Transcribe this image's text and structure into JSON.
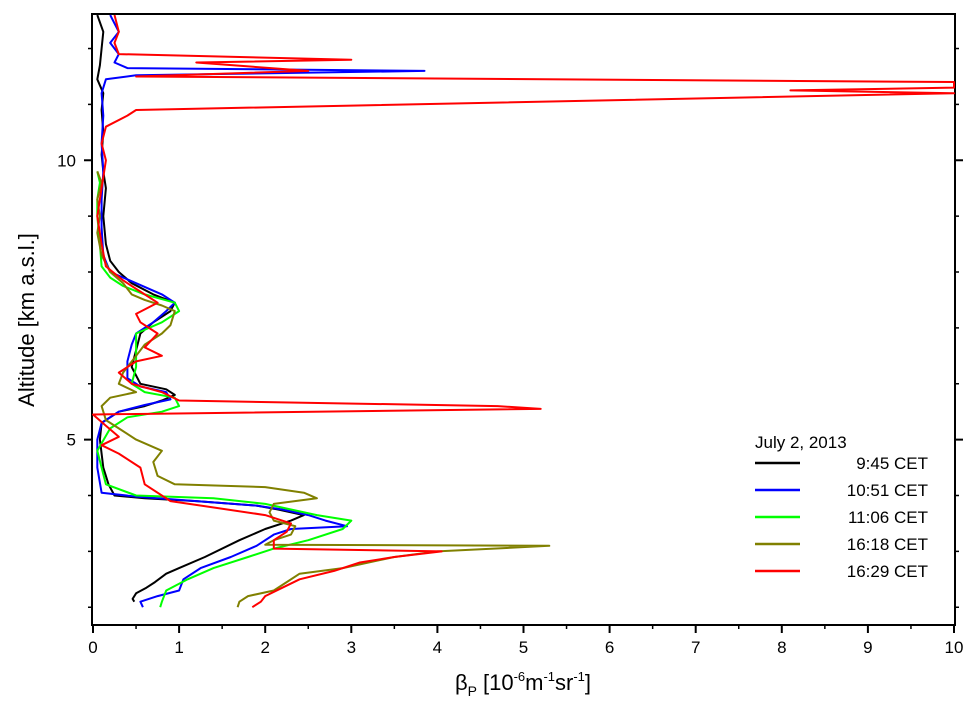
{
  "chart_data": {
    "type": "line",
    "orientation": "profile",
    "xlabel_symbol": "β",
    "xlabel_sub": "P",
    "xlabel_unit_base": "10",
    "xlabel_unit_exp1": "-6",
    "xlabel_unit_m": "m",
    "xlabel_unit_exp2": "-1",
    "xlabel_unit_sr": "sr",
    "xlabel_unit_exp3": "-1",
    "ylabel": "Altitude [km a.s.l.]",
    "xlim": [
      0,
      10
    ],
    "ylim": [
      1.7,
      12.6
    ],
    "x_ticks": [
      "0",
      "1",
      "2",
      "3",
      "4",
      "5",
      "6",
      "7",
      "8",
      "9",
      "10"
    ],
    "y_ticks": [
      "5",
      "10"
    ],
    "legend_title": "July 2, 2013",
    "legend_position": "lower-right",
    "series": [
      {
        "name": "9:45 CET",
        "color": "#000000",
        "points": [
          [
            0.48,
            2.1
          ],
          [
            0.46,
            2.15
          ],
          [
            0.5,
            2.25
          ],
          [
            0.62,
            2.35
          ],
          [
            0.72,
            2.45
          ],
          [
            0.85,
            2.6
          ],
          [
            1.0,
            2.7
          ],
          [
            1.3,
            2.9
          ],
          [
            1.7,
            3.2
          ],
          [
            2.0,
            3.4
          ],
          [
            2.3,
            3.55
          ],
          [
            2.45,
            3.65
          ],
          [
            2.15,
            3.75
          ],
          [
            1.9,
            3.82
          ],
          [
            1.2,
            3.9
          ],
          [
            0.6,
            3.95
          ],
          [
            0.25,
            4.0
          ],
          [
            0.18,
            4.2
          ],
          [
            0.12,
            4.5
          ],
          [
            0.08,
            5.0
          ],
          [
            0.1,
            5.3
          ],
          [
            0.3,
            5.5
          ],
          [
            0.6,
            5.6
          ],
          [
            0.8,
            5.7
          ],
          [
            0.95,
            5.8
          ],
          [
            0.85,
            5.9
          ],
          [
            0.55,
            6.0
          ],
          [
            0.45,
            6.3
          ],
          [
            0.5,
            6.6
          ],
          [
            0.55,
            6.9
          ],
          [
            0.7,
            7.1
          ],
          [
            0.9,
            7.3
          ],
          [
            0.95,
            7.45
          ],
          [
            0.7,
            7.6
          ],
          [
            0.45,
            7.8
          ],
          [
            0.3,
            8.0
          ],
          [
            0.2,
            8.2
          ],
          [
            0.15,
            8.5
          ],
          [
            0.12,
            9.0
          ],
          [
            0.15,
            9.5
          ],
          [
            0.12,
            9.8
          ],
          [
            0.1,
            10.1
          ],
          [
            0.12,
            10.5
          ],
          [
            0.1,
            10.9
          ],
          [
            0.12,
            11.2
          ],
          [
            0.05,
            11.45
          ],
          [
            0.08,
            11.7
          ],
          [
            0.1,
            12.0
          ],
          [
            0.12,
            12.3
          ],
          [
            0.05,
            12.6
          ]
        ]
      },
      {
        "name": "10:51 CET",
        "color": "#0000ff",
        "points": [
          [
            0.58,
            2.0
          ],
          [
            0.55,
            2.1
          ],
          [
            0.75,
            2.2
          ],
          [
            1.0,
            2.3
          ],
          [
            1.05,
            2.5
          ],
          [
            1.25,
            2.7
          ],
          [
            1.6,
            2.9
          ],
          [
            1.9,
            3.1
          ],
          [
            2.1,
            3.3
          ],
          [
            2.3,
            3.4
          ],
          [
            2.95,
            3.45
          ],
          [
            2.7,
            3.55
          ],
          [
            2.5,
            3.65
          ],
          [
            2.2,
            3.75
          ],
          [
            1.9,
            3.82
          ],
          [
            1.2,
            3.9
          ],
          [
            0.5,
            3.98
          ],
          [
            0.1,
            4.05
          ],
          [
            0.05,
            4.5
          ],
          [
            0.05,
            5.0
          ],
          [
            0.1,
            5.3
          ],
          [
            0.3,
            5.5
          ],
          [
            0.6,
            5.62
          ],
          [
            0.9,
            5.72
          ],
          [
            0.85,
            5.85
          ],
          [
            0.55,
            5.95
          ],
          [
            0.4,
            6.1
          ],
          [
            0.4,
            6.4
          ],
          [
            0.45,
            6.7
          ],
          [
            0.5,
            6.9
          ],
          [
            0.7,
            7.1
          ],
          [
            0.85,
            7.3
          ],
          [
            0.95,
            7.45
          ],
          [
            0.8,
            7.6
          ],
          [
            0.5,
            7.8
          ],
          [
            0.2,
            8.0
          ],
          [
            0.12,
            8.3
          ],
          [
            0.1,
            8.8
          ],
          [
            0.1,
            9.3
          ],
          [
            0.12,
            9.8
          ],
          [
            0.1,
            10.3
          ],
          [
            0.12,
            10.8
          ],
          [
            0.1,
            11.2
          ],
          [
            0.15,
            11.45
          ],
          [
            0.5,
            11.52
          ],
          [
            3.85,
            11.6
          ],
          [
            0.4,
            11.65
          ],
          [
            0.25,
            11.75
          ],
          [
            0.3,
            11.9
          ],
          [
            0.2,
            12.1
          ],
          [
            0.3,
            12.3
          ],
          [
            0.2,
            12.6
          ]
        ]
      },
      {
        "name": "11:06 CET",
        "color": "#00ff00",
        "points": [
          [
            0.78,
            2.0
          ],
          [
            0.8,
            2.1
          ],
          [
            0.85,
            2.3
          ],
          [
            1.1,
            2.5
          ],
          [
            1.4,
            2.7
          ],
          [
            1.8,
            2.9
          ],
          [
            2.1,
            3.05
          ],
          [
            2.5,
            3.2
          ],
          [
            2.9,
            3.4
          ],
          [
            3.0,
            3.55
          ],
          [
            2.6,
            3.65
          ],
          [
            2.3,
            3.75
          ],
          [
            2.0,
            3.85
          ],
          [
            1.4,
            3.95
          ],
          [
            0.5,
            4.0
          ],
          [
            0.15,
            4.2
          ],
          [
            0.1,
            4.5
          ],
          [
            0.05,
            4.8
          ],
          [
            0.2,
            5.2
          ],
          [
            0.4,
            5.4
          ],
          [
            0.8,
            5.5
          ],
          [
            1.0,
            5.6
          ],
          [
            0.95,
            5.75
          ],
          [
            0.6,
            5.85
          ],
          [
            0.45,
            6.0
          ],
          [
            0.5,
            6.3
          ],
          [
            0.5,
            6.6
          ],
          [
            0.5,
            6.9
          ],
          [
            0.8,
            7.1
          ],
          [
            1.0,
            7.3
          ],
          [
            0.95,
            7.45
          ],
          [
            0.6,
            7.6
          ],
          [
            0.35,
            7.75
          ],
          [
            0.2,
            7.9
          ],
          [
            0.1,
            8.1
          ],
          [
            0.08,
            8.5
          ],
          [
            0.05,
            9.0
          ],
          [
            0.05,
            9.3
          ],
          [
            0.08,
            9.6
          ],
          [
            0.05,
            9.8
          ]
        ]
      },
      {
        "name": "16:18 CET",
        "color": "#808000",
        "points": [
          [
            1.68,
            2.0
          ],
          [
            1.7,
            2.1
          ],
          [
            1.8,
            2.2
          ],
          [
            2.1,
            2.3
          ],
          [
            2.25,
            2.45
          ],
          [
            2.4,
            2.6
          ],
          [
            2.9,
            2.7
          ],
          [
            3.2,
            2.8
          ],
          [
            3.5,
            2.9
          ],
          [
            4.0,
            3.0
          ],
          [
            5.3,
            3.1
          ],
          [
            2.0,
            3.12
          ],
          [
            2.1,
            3.2
          ],
          [
            2.3,
            3.3
          ],
          [
            2.35,
            3.45
          ],
          [
            2.1,
            3.55
          ],
          [
            2.05,
            3.7
          ],
          [
            2.1,
            3.85
          ],
          [
            2.6,
            3.95
          ],
          [
            2.45,
            4.05
          ],
          [
            2.0,
            4.15
          ],
          [
            0.95,
            4.2
          ],
          [
            0.75,
            4.35
          ],
          [
            0.7,
            4.6
          ],
          [
            0.8,
            4.8
          ],
          [
            0.5,
            5.0
          ],
          [
            0.3,
            5.2
          ],
          [
            0.15,
            5.35
          ],
          [
            0.1,
            5.6
          ],
          [
            0.2,
            5.75
          ],
          [
            0.5,
            5.85
          ],
          [
            0.3,
            6.0
          ],
          [
            0.35,
            6.2
          ],
          [
            0.5,
            6.5
          ],
          [
            0.6,
            6.7
          ],
          [
            0.8,
            6.9
          ],
          [
            0.9,
            7.05
          ],
          [
            0.95,
            7.3
          ],
          [
            0.8,
            7.4
          ],
          [
            0.6,
            7.5
          ],
          [
            0.45,
            7.6
          ],
          [
            0.35,
            7.8
          ],
          [
            0.2,
            8.0
          ],
          [
            0.1,
            8.3
          ],
          [
            0.05,
            8.7
          ],
          [
            0.08,
            9.0
          ],
          [
            0.05,
            9.3
          ],
          [
            0.1,
            9.6
          ],
          [
            0.05,
            9.8
          ]
        ]
      },
      {
        "name": "16:29 CET",
        "color": "#ff0000",
        "points": [
          [
            1.85,
            2.0
          ],
          [
            1.95,
            2.1
          ],
          [
            2.0,
            2.2
          ],
          [
            2.2,
            2.35
          ],
          [
            2.4,
            2.5
          ],
          [
            2.8,
            2.65
          ],
          [
            3.1,
            2.8
          ],
          [
            3.5,
            2.9
          ],
          [
            4.05,
            3.0
          ],
          [
            2.1,
            3.05
          ],
          [
            2.1,
            3.2
          ],
          [
            2.25,
            3.35
          ],
          [
            2.3,
            3.5
          ],
          [
            2.0,
            3.65
          ],
          [
            0.9,
            3.9
          ],
          [
            0.6,
            4.2
          ],
          [
            0.55,
            4.5
          ],
          [
            0.3,
            4.75
          ],
          [
            0.1,
            4.9
          ],
          [
            0.3,
            5.05
          ],
          [
            0.15,
            5.25
          ],
          [
            0.0,
            5.45
          ],
          [
            5.2,
            5.55
          ],
          [
            4.7,
            5.6
          ],
          [
            1.0,
            5.7
          ],
          [
            0.8,
            5.85
          ],
          [
            0.45,
            6.0
          ],
          [
            0.3,
            6.2
          ],
          [
            0.5,
            6.4
          ],
          [
            0.8,
            6.5
          ],
          [
            0.6,
            6.65
          ],
          [
            0.75,
            6.9
          ],
          [
            0.55,
            7.1
          ],
          [
            0.5,
            7.25
          ],
          [
            0.75,
            7.45
          ],
          [
            0.55,
            7.65
          ],
          [
            0.35,
            7.85
          ],
          [
            0.15,
            8.1
          ],
          [
            0.1,
            8.5
          ],
          [
            0.05,
            9.0
          ],
          [
            0.1,
            9.5
          ],
          [
            0.15,
            10.0
          ],
          [
            0.1,
            10.3
          ],
          [
            0.15,
            10.6
          ],
          [
            0.4,
            10.8
          ],
          [
            0.5,
            10.9
          ],
          [
            10.0,
            11.2
          ],
          [
            8.1,
            11.25
          ],
          [
            10.0,
            11.3
          ],
          [
            10.0,
            11.4
          ],
          [
            0.5,
            11.5
          ],
          [
            2.5,
            11.6
          ],
          [
            1.2,
            11.75
          ],
          [
            3.0,
            11.8
          ],
          [
            0.3,
            11.9
          ],
          [
            0.25,
            12.1
          ],
          [
            0.3,
            12.3
          ],
          [
            0.25,
            12.6
          ]
        ]
      }
    ]
  }
}
